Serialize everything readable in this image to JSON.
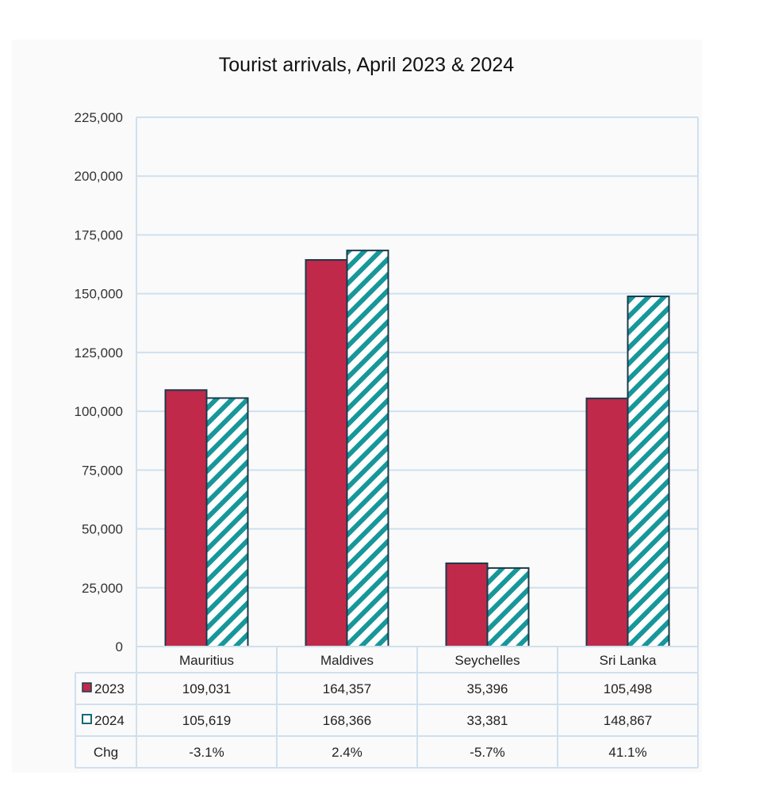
{
  "chart_data": {
    "type": "bar",
    "title": "Tourist arrivals, April 2023 & 2024",
    "categories": [
      "Mauritius",
      "Maldives",
      "Seychelles",
      "Sri Lanka"
    ],
    "series": [
      {
        "name": "2023",
        "values": [
          109031,
          164357,
          35396,
          105498
        ],
        "color": "#c0294a",
        "pattern": "solid"
      },
      {
        "name": "2024",
        "values": [
          105619,
          168366,
          33381,
          148867
        ],
        "color": "#17979a",
        "pattern": "diagonal-stripes"
      }
    ],
    "ylim": [
      0,
      225000
    ],
    "yticks": [
      "0",
      "25,000",
      "50,000",
      "75,000",
      "100,000",
      "125,000",
      "150,000",
      "175,000",
      "200,000",
      "225,000"
    ],
    "xlabel": "",
    "ylabel": "",
    "grid": true,
    "data_table": {
      "rows": [
        {
          "label": "2023",
          "values": [
            "109,031",
            "164,357",
            "35,396",
            "105,498"
          ]
        },
        {
          "label": "2024",
          "values": [
            "105,619",
            "168,366",
            "33,381",
            "148,867"
          ]
        },
        {
          "label": "Chg",
          "values": [
            "-3.1%",
            "2.4%",
            "-5.7%",
            "41.1%"
          ]
        }
      ]
    }
  }
}
